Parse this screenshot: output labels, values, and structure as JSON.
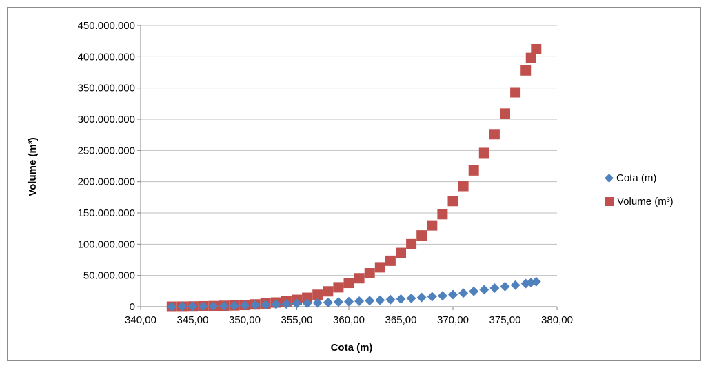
{
  "colors": {
    "cota": "#4f81bd",
    "volume": "#c0504d",
    "grid": "#bfbfbf",
    "axis": "#868686"
  },
  "chart_data": {
    "type": "scatter",
    "title": "",
    "xlabel": "Cota (m)",
    "ylabel": "Volume (m³)",
    "xlim": [
      340,
      380
    ],
    "ylim": [
      0,
      450000000
    ],
    "x_ticks": [
      "340,00",
      "345,00",
      "350,00",
      "355,00",
      "360,00",
      "365,00",
      "370,00",
      "375,00",
      "380,00"
    ],
    "y_ticks": [
      "0",
      "50.000.000",
      "100.000.000",
      "150.000.000",
      "200.000.000",
      "250.000.000",
      "300.000.000",
      "350.000.000",
      "400.000.000",
      "450.000.000"
    ],
    "grid": "horizontal",
    "legend_position": "right",
    "series": [
      {
        "name": "Cota (m)",
        "marker": "diamond",
        "points": [
          [
            343,
            0
          ],
          [
            344,
            200000
          ],
          [
            345,
            400000
          ],
          [
            346,
            700000
          ],
          [
            347,
            1000000
          ],
          [
            348,
            1300000
          ],
          [
            349,
            1700000
          ],
          [
            350,
            2100000
          ],
          [
            351,
            2600000
          ],
          [
            352,
            3100000
          ],
          [
            353,
            3700000
          ],
          [
            354,
            4300000
          ],
          [
            355,
            4900000
          ],
          [
            356,
            5500000
          ],
          [
            357,
            6100000
          ],
          [
            358,
            6800000
          ],
          [
            359,
            7400000
          ],
          [
            360,
            8100000
          ],
          [
            361,
            8800000
          ],
          [
            362,
            9600000
          ],
          [
            363,
            10400000
          ],
          [
            364,
            11300000
          ],
          [
            365,
            12300000
          ],
          [
            366,
            13400000
          ],
          [
            367,
            14700000
          ],
          [
            368,
            16000000
          ],
          [
            369,
            17400000
          ],
          [
            370,
            19300000
          ],
          [
            371,
            21800000
          ],
          [
            372,
            24500000
          ],
          [
            373,
            27200000
          ],
          [
            374,
            29800000
          ],
          [
            375,
            32300000
          ],
          [
            376,
            34500000
          ],
          [
            377,
            37000000
          ],
          [
            377.5,
            38500000
          ],
          [
            378,
            40000000
          ]
        ]
      },
      {
        "name": "Volume (m³)",
        "marker": "square",
        "points": [
          [
            343,
            0
          ],
          [
            344,
            100000
          ],
          [
            345,
            300000
          ],
          [
            346,
            600000
          ],
          [
            347,
            900000
          ],
          [
            348,
            1400000
          ],
          [
            349,
            2000000
          ],
          [
            350,
            2700000
          ],
          [
            351,
            3600000
          ],
          [
            352,
            5000000
          ],
          [
            353,
            6600000
          ],
          [
            354,
            8600000
          ],
          [
            355,
            11000000
          ],
          [
            356,
            14300000
          ],
          [
            357,
            19000000
          ],
          [
            358,
            24500000
          ],
          [
            359,
            31000000
          ],
          [
            360,
            38000000
          ],
          [
            361,
            45500000
          ],
          [
            362,
            53500000
          ],
          [
            363,
            63000000
          ],
          [
            364,
            73500000
          ],
          [
            365,
            86000000
          ],
          [
            366,
            100000000
          ],
          [
            367,
            114000000
          ],
          [
            368,
            130000000
          ],
          [
            369,
            148000000
          ],
          [
            370,
            169000000
          ],
          [
            371,
            193000000
          ],
          [
            372,
            218000000
          ],
          [
            373,
            246000000
          ],
          [
            374,
            276000000
          ],
          [
            375,
            309000000
          ],
          [
            376,
            343000000
          ],
          [
            377,
            378000000
          ],
          [
            377.5,
            398000000
          ],
          [
            378,
            412000000
          ]
        ]
      }
    ]
  }
}
